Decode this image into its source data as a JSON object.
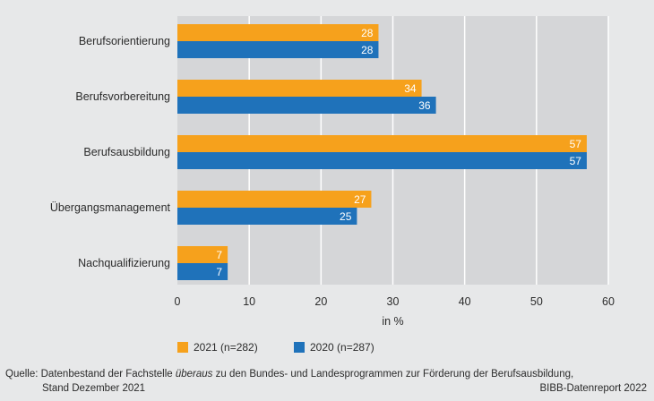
{
  "chart_data": {
    "type": "bar",
    "orientation": "horizontal",
    "categories": [
      "Berufsorientierung",
      "Berufsvorbereitung",
      "Berufsausbildung",
      "Übergangsmanagement",
      "Nachqualifizierung"
    ],
    "series": [
      {
        "name": "2021 (n=282)",
        "color": "#f6a11c",
        "values": [
          28,
          34,
          57,
          27,
          7
        ]
      },
      {
        "name": "2020 (n=287)",
        "color": "#1f72ba",
        "values": [
          28,
          36,
          57,
          25,
          7
        ]
      }
    ],
    "xlim": [
      0,
      60
    ],
    "xticks": [
      "0",
      "10",
      "20",
      "30",
      "40",
      "50",
      "60"
    ],
    "xlabel": "in %",
    "grid": true,
    "legend_position": "bottom"
  },
  "colors": {
    "background": "#e7e8e9",
    "plot_background": "#d5d6d8",
    "grid": "#ffffff",
    "series_2021": "#f6a11c",
    "series_2020": "#1f72ba"
  },
  "footer": {
    "source_prefix": "Quelle: Datenbestand der Fachstelle ",
    "source_emphasis": "überaus",
    "source_suffix": " zu den Bundes- und Landesprogrammen zur Förderung der Berufsausbildung,",
    "source_line2": "Stand Dezember 2021",
    "brand": "BIBB-Datenreport 2022"
  }
}
